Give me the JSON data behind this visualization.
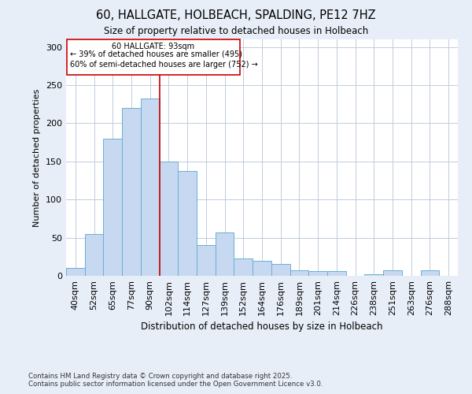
{
  "title": "60, HALLGATE, HOLBEACH, SPALDING, PE12 7HZ",
  "subtitle": "Size of property relative to detached houses in Holbeach",
  "xlabel": "Distribution of detached houses by size in Holbeach",
  "ylabel": "Number of detached properties",
  "bar_labels": [
    "40sqm",
    "52sqm",
    "65sqm",
    "77sqm",
    "90sqm",
    "102sqm",
    "114sqm",
    "127sqm",
    "139sqm",
    "152sqm",
    "164sqm",
    "176sqm",
    "189sqm",
    "201sqm",
    "214sqm",
    "226sqm",
    "238sqm",
    "251sqm",
    "263sqm",
    "276sqm",
    "288sqm"
  ],
  "bar_values": [
    10,
    55,
    180,
    220,
    233,
    150,
    137,
    40,
    57,
    23,
    20,
    15,
    7,
    6,
    6,
    0,
    2,
    7,
    0,
    7
  ],
  "bar_color": "#c6d9f0",
  "bar_edge_color": "#6baed6",
  "ref_line_label": "60 HALLGATE: 93sqm",
  "annotation_line1": "← 39% of detached houses are smaller (495)",
  "annotation_line2": "60% of semi-detached houses are larger (752) →",
  "box_edge_color": "#cc0000",
  "footnote1": "Contains HM Land Registry data © Crown copyright and database right 2025.",
  "footnote2": "Contains public sector information licensed under the Open Government Licence v3.0.",
  "ylim": [
    0,
    310
  ],
  "background_color": "#e8eef8",
  "plot_bg_color": "#ffffff",
  "grid_color": "#c0ccdd"
}
